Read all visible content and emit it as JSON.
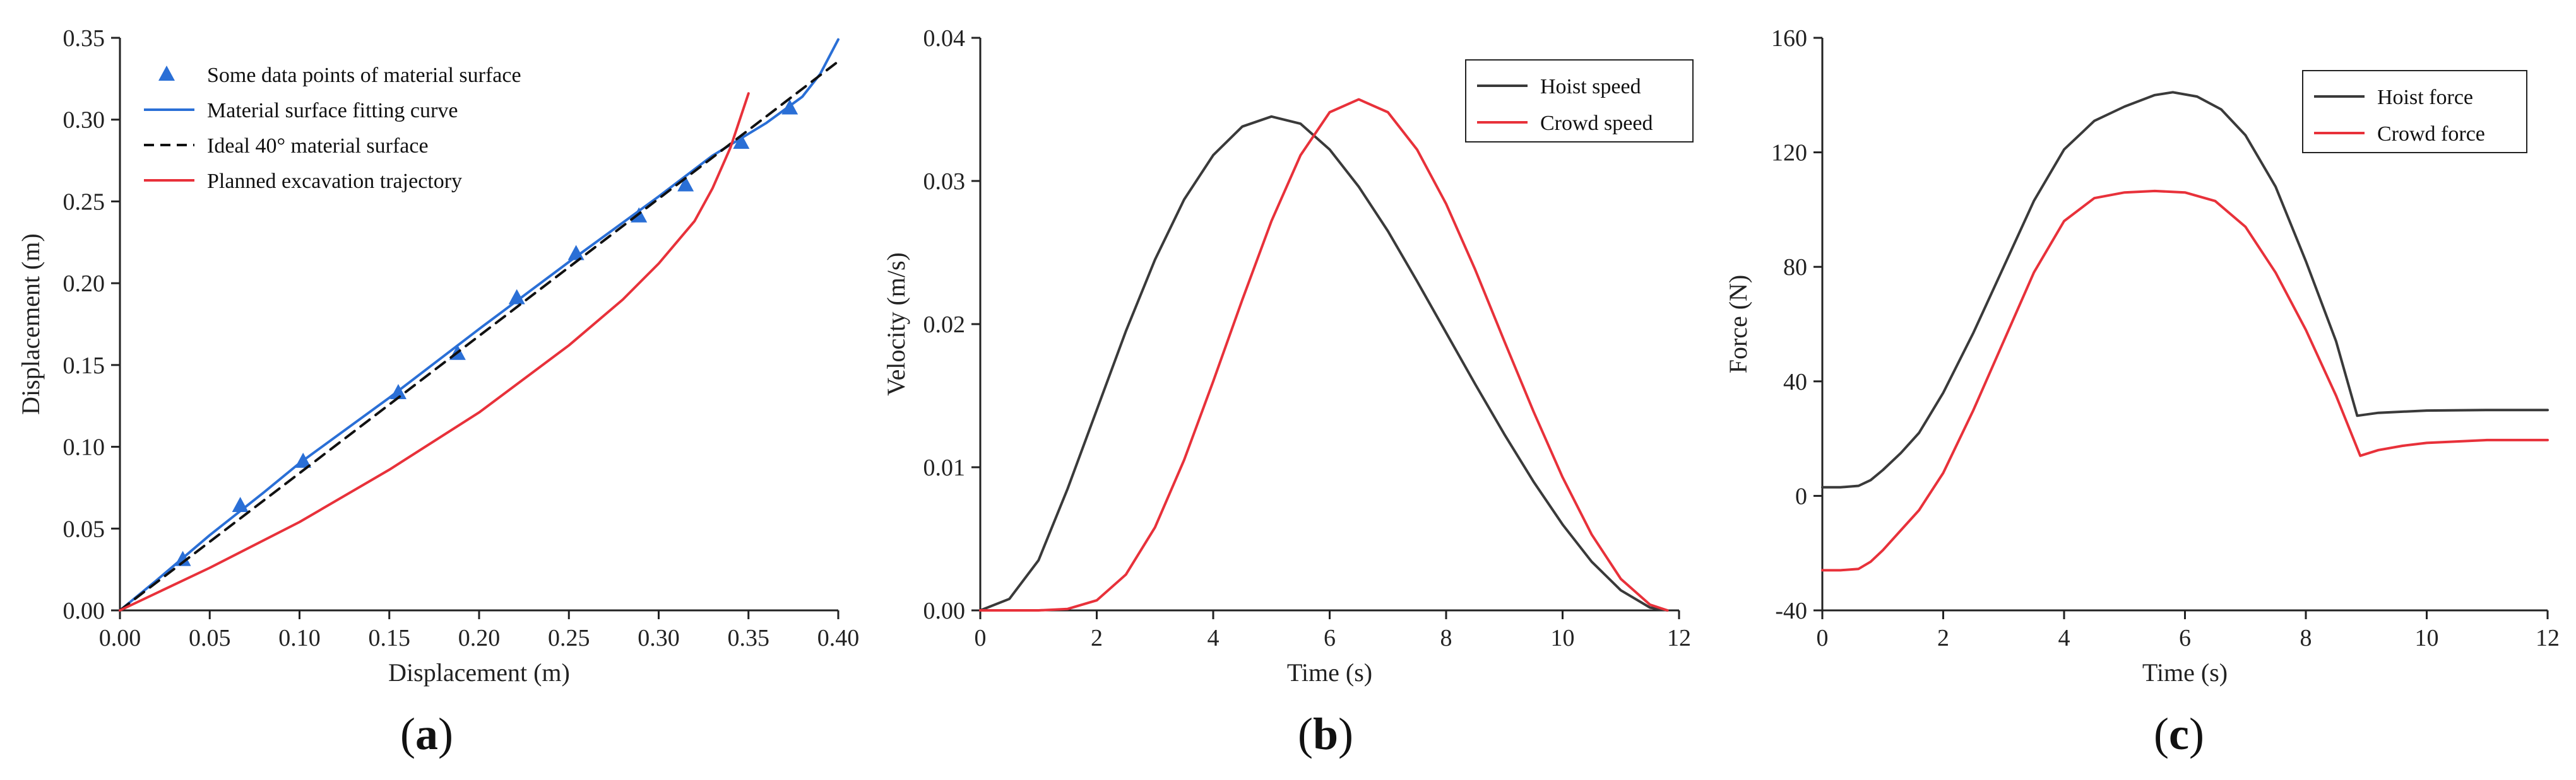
{
  "chart_data": [
    {
      "type": "line",
      "panel_label": "a",
      "xlabel": "Displacement (m)",
      "ylabel": "Displacement (m)",
      "xlim": [
        0,
        0.4
      ],
      "ylim": [
        0,
        0.35
      ],
      "xticks": [
        0.0,
        0.05,
        0.1,
        0.15,
        0.2,
        0.25,
        0.3,
        0.35,
        0.4
      ],
      "yticks": [
        0.0,
        0.05,
        0.1,
        0.15,
        0.2,
        0.25,
        0.3,
        0.35
      ],
      "xtick_labels": [
        "0.00",
        "0.05",
        "0.10",
        "0.15",
        "0.20",
        "0.25",
        "0.30",
        "0.35",
        "0.40"
      ],
      "ytick_labels": [
        "0.00",
        "0.05",
        "0.10",
        "0.15",
        "0.20",
        "0.25",
        "0.30",
        "0.35"
      ],
      "legend_position": "top-left",
      "series": [
        {
          "name": "Some data points of material surface",
          "kind": "markers",
          "marker": "triangle",
          "color": "#2A6FD6",
          "x": [
            0.035,
            0.067,
            0.102,
            0.155,
            0.188,
            0.221,
            0.254,
            0.289,
            0.315,
            0.346,
            0.373
          ],
          "y": [
            0.031,
            0.064,
            0.091,
            0.133,
            0.157,
            0.191,
            0.218,
            0.241,
            0.26,
            0.286,
            0.307
          ]
        },
        {
          "name": "Material surface fitting curve",
          "kind": "line",
          "color": "#2A6FD6",
          "dash": "solid",
          "x": [
            0.0,
            0.02,
            0.05,
            0.08,
            0.1,
            0.15,
            0.2,
            0.25,
            0.3,
            0.33,
            0.36,
            0.38,
            0.39,
            0.4
          ],
          "y": [
            0.0,
            0.018,
            0.046,
            0.072,
            0.09,
            0.13,
            0.172,
            0.213,
            0.253,
            0.278,
            0.298,
            0.314,
            0.328,
            0.349
          ]
        },
        {
          "name": "Ideal 40° material surface",
          "kind": "line",
          "color": "#111111",
          "dash": "dashed",
          "x": [
            0.0,
            0.4
          ],
          "y": [
            0.0,
            0.3356
          ]
        },
        {
          "name": "Planned excavation trajectory",
          "kind": "line",
          "color": "#E8313A",
          "dash": "solid",
          "x": [
            0.0,
            0.05,
            0.1,
            0.15,
            0.2,
            0.25,
            0.28,
            0.3,
            0.32,
            0.33,
            0.34,
            0.35
          ],
          "y": [
            0.0,
            0.026,
            0.054,
            0.086,
            0.121,
            0.162,
            0.19,
            0.212,
            0.238,
            0.258,
            0.283,
            0.316
          ]
        }
      ]
    },
    {
      "type": "line",
      "panel_label": "b",
      "xlabel": "Time (s)",
      "ylabel": "Velocity (m/s)",
      "xlim": [
        0,
        12
      ],
      "ylim": [
        0,
        0.04
      ],
      "xticks": [
        0,
        2,
        4,
        6,
        8,
        10,
        12
      ],
      "yticks": [
        0.0,
        0.01,
        0.02,
        0.03,
        0.04
      ],
      "xtick_labels": [
        "0",
        "2",
        "4",
        "6",
        "8",
        "10",
        "12"
      ],
      "ytick_labels": [
        "0.00",
        "0.01",
        "0.02",
        "0.03",
        "0.04"
      ],
      "legend_position": "top-right",
      "series": [
        {
          "name": "Hoist speed",
          "kind": "line",
          "color": "#3A3A3A",
          "dash": "solid",
          "x": [
            0.0,
            0.5,
            1.0,
            1.5,
            2.0,
            2.5,
            3.0,
            3.5,
            4.0,
            4.5,
            5.0,
            5.5,
            6.0,
            6.5,
            7.0,
            7.5,
            8.0,
            8.5,
            9.0,
            9.5,
            10.0,
            10.5,
            11.0,
            11.5,
            11.8
          ],
          "y": [
            0.0,
            0.0008,
            0.0035,
            0.0085,
            0.014,
            0.0195,
            0.0245,
            0.0287,
            0.0318,
            0.0338,
            0.0345,
            0.034,
            0.0322,
            0.0296,
            0.0265,
            0.023,
            0.0194,
            0.0158,
            0.0123,
            0.009,
            0.006,
            0.0034,
            0.0014,
            0.0002,
            0.0
          ]
        },
        {
          "name": "Crowd speed",
          "kind": "line",
          "color": "#E8313A",
          "dash": "solid",
          "x": [
            0.0,
            1.0,
            1.5,
            2.0,
            2.5,
            3.0,
            3.5,
            4.0,
            4.5,
            5.0,
            5.5,
            6.0,
            6.5,
            7.0,
            7.5,
            8.0,
            8.5,
            9.0,
            9.5,
            10.0,
            10.5,
            11.0,
            11.5,
            11.8
          ],
          "y": [
            0.0,
            0.0,
            0.0001,
            0.0007,
            0.0025,
            0.0058,
            0.0105,
            0.016,
            0.0217,
            0.0272,
            0.0318,
            0.0348,
            0.0357,
            0.0348,
            0.0322,
            0.0284,
            0.0238,
            0.0188,
            0.0139,
            0.0093,
            0.0053,
            0.0022,
            0.0004,
            0.0
          ]
        }
      ]
    },
    {
      "type": "line",
      "panel_label": "c",
      "xlabel": "Time (s)",
      "ylabel": "Force (N)",
      "xlim": [
        0,
        12
      ],
      "ylim": [
        -40,
        160
      ],
      "xticks": [
        0,
        2,
        4,
        6,
        8,
        10,
        12
      ],
      "yticks": [
        -40,
        0,
        40,
        80,
        120,
        160
      ],
      "xtick_labels": [
        "0",
        "2",
        "4",
        "6",
        "8",
        "10",
        "12"
      ],
      "ytick_labels": [
        "-40",
        "0",
        "40",
        "80",
        "120",
        "160"
      ],
      "legend_position": "top-right",
      "series": [
        {
          "name": "Hoist force",
          "kind": "line",
          "color": "#3A3A3A",
          "dash": "solid",
          "x": [
            0.0,
            0.3,
            0.6,
            0.8,
            1.0,
            1.3,
            1.6,
            2.0,
            2.5,
            3.0,
            3.5,
            4.0,
            4.5,
            5.0,
            5.5,
            5.8,
            6.2,
            6.6,
            7.0,
            7.5,
            8.0,
            8.5,
            8.85,
            9.2,
            10.0,
            11.0,
            12.0
          ],
          "y": [
            3.0,
            3.0,
            3.5,
            5.5,
            9.0,
            15.0,
            22.0,
            36.0,
            57.0,
            80.0,
            103.0,
            121.0,
            131.0,
            136.0,
            140.0,
            141.0,
            139.5,
            135.0,
            126.0,
            108.0,
            82.0,
            54.0,
            28.0,
            29.0,
            29.8,
            30.0,
            30.0
          ]
        },
        {
          "name": "Crowd force",
          "kind": "line",
          "color": "#E8313A",
          "dash": "solid",
          "x": [
            0.0,
            0.3,
            0.6,
            0.8,
            1.0,
            1.3,
            1.6,
            2.0,
            2.5,
            3.0,
            3.5,
            4.0,
            4.5,
            5.0,
            5.5,
            6.0,
            6.5,
            7.0,
            7.5,
            8.0,
            8.5,
            8.9,
            9.2,
            9.6,
            10.0,
            11.0,
            12.0
          ],
          "y": [
            -26.0,
            -26.0,
            -25.5,
            -23.0,
            -19.0,
            -12.0,
            -5.0,
            8.0,
            30.0,
            54.0,
            78.0,
            96.0,
            104.0,
            106.0,
            106.5,
            106.0,
            103.0,
            94.0,
            78.0,
            58.0,
            35.0,
            14.0,
            16.0,
            17.5,
            18.5,
            19.5,
            19.5
          ]
        }
      ]
    }
  ]
}
